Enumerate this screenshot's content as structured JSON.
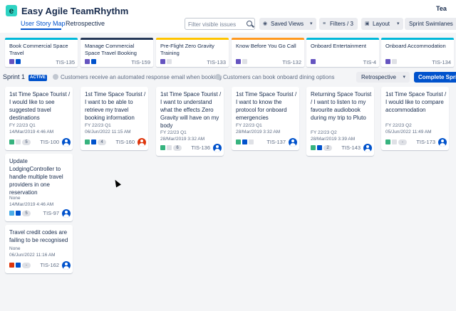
{
  "app": {
    "title": "Easy Agile TeamRhythm",
    "logo_glyph": "e",
    "team_label": "Tea"
  },
  "tabs": [
    {
      "label": "User Story Map",
      "active": true
    },
    {
      "label": "Retrospective",
      "active": false
    }
  ],
  "toolbar": {
    "filter_placeholder": "Filter visible issues",
    "saved_views_label": "Saved Views",
    "filters_label": "Filters / 3",
    "layout_label": "Layout",
    "swimlanes_label": "Sprint Swimlanes"
  },
  "epics": [
    {
      "title": "Book Commercial Space Travel",
      "key": "TIS-135",
      "color": "#00b8d9"
    },
    {
      "title": "Manage Commercial Space Travel Booking",
      "key": "TIS-159",
      "color": "#253858"
    },
    {
      "title": "Pre-Flight Zero Gravity Training",
      "key": "TIS-133",
      "color": "#ffc400"
    },
    {
      "title": "Know Before You Go Call",
      "key": "TIS-132",
      "color": "#ff991f"
    },
    {
      "title": "Onboard Entertainment",
      "key": "TIS-4",
      "color": "#00b8d9"
    },
    {
      "title": "Onboard Accommodation",
      "key": "TIS-134",
      "color": "#00b8d9"
    }
  ],
  "sprint": {
    "name": "Sprint 1",
    "badge": "ACTIVE",
    "goal_1": "Customers receive an automated response email when booking",
    "goal_2": "Customers can book onboard dining options",
    "retro_label": "Retrospective",
    "complete_label": "Complete Sprint"
  },
  "cards": [
    {
      "title": "1st Time Space Tourist / I would like to see suggested travel destinations",
      "meta1": "FY 22/23 Q1",
      "meta2": "14/Mar/2019 4:46 AM",
      "points": "5",
      "key": "TIS-100"
    },
    {
      "title": "1st Time Space Tourist / I want to be able to retrieve my travel booking information",
      "meta1": "FY 22/23 Q1",
      "meta2": "06/Jun/2022 11:15 AM",
      "points": "4",
      "key": "TIS-160"
    },
    {
      "title": "1st Time Space Tourist / I want to understand what the effects Zero Gravity will have on my body",
      "meta1": "FY 22/23 Q1",
      "meta2": "28/Mar/2019 3:32 AM",
      "points": "6",
      "key": "TIS-136"
    },
    {
      "title": "1st Time Space Tourist / I want to know the protocol for onboard emergencies",
      "meta1": "FY 22/23 Q1",
      "meta2": "28/Mar/2019 3:32 AM",
      "points": "",
      "key": "TIS-137"
    },
    {
      "title": "Returning Space Tourist / I want to listen to my favourite audiobook during my trip to Pluto",
      "meta1": "FY 22/23 Q2",
      "meta2": "28/Mar/2019 3:39 AM",
      "points": "2",
      "key": "TIS-143"
    },
    {
      "title": "1st Time Space Tourist / I would like to compare accommodation",
      "meta1": "FY 22/23 Q2",
      "meta2": "05/Jun/2022 11:49 AM",
      "points": "-",
      "key": "TIS-173"
    },
    {
      "title": "Update LodgingController to handle multiple travel providers in one reservation",
      "meta1": "None",
      "meta2": "14/Mar/2019 4:46 AM",
      "points": "5",
      "key": "TIS-97"
    },
    {
      "title": "Travel credit codes are failing to be recognised",
      "meta1": "None",
      "meta2": "06/Jun/2022 11:16 AM",
      "points": "-",
      "key": "TIS-162"
    }
  ],
  "icons": {
    "story": "#36b37e",
    "priority": "#0052cc",
    "epic": "#6554c0",
    "task": "#4bade8",
    "bug": "#de350b",
    "ghost": "#dfe1e6"
  }
}
